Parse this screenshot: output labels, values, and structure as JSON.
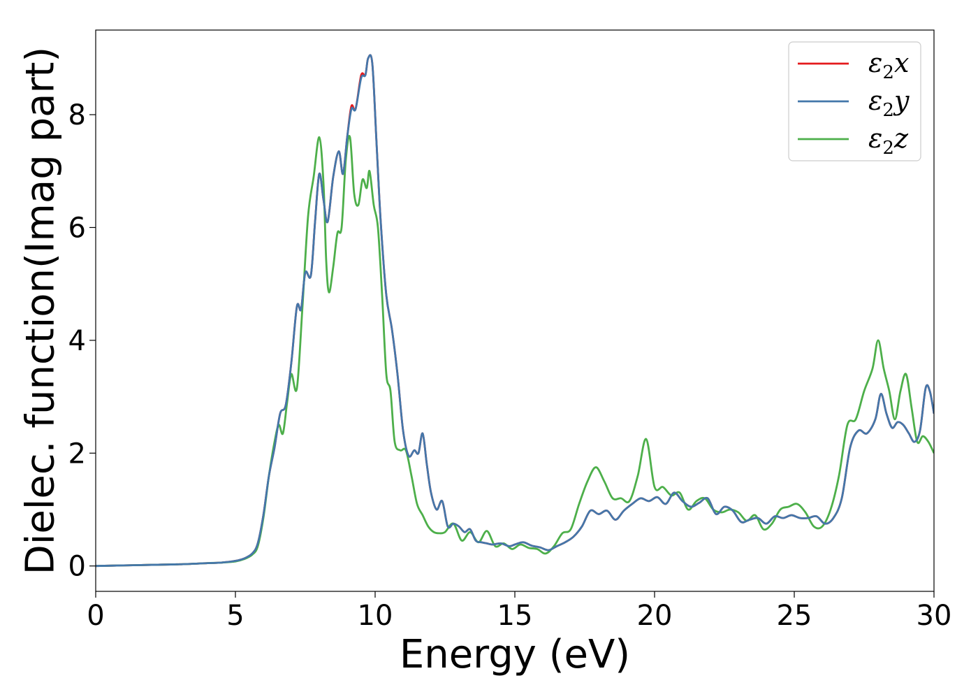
{
  "chart_data": {
    "type": "line",
    "title": "",
    "xlabel": "Energy (eV)",
    "ylabel": "Dielec. function(Imag part)",
    "xlim": [
      0,
      30
    ],
    "ylim": [
      -0.45,
      9.5
    ],
    "xticks": [
      0,
      5,
      10,
      15,
      20,
      25,
      30
    ],
    "yticks": [
      0,
      2,
      4,
      6,
      8
    ],
    "grid": false,
    "legend_position": "top-right",
    "series": [
      {
        "name": "ε2x",
        "legend_base": "ε",
        "legend_sub": "2",
        "legend_tail": "x",
        "color": "#e41a1c",
        "x": [
          0,
          1,
          2,
          3,
          4,
          4.5,
          5,
          5.3,
          5.6,
          5.8,
          6.0,
          6.2,
          6.4,
          6.6,
          6.8,
          7.0,
          7.2,
          7.35,
          7.5,
          7.7,
          7.85,
          8.0,
          8.15,
          8.3,
          8.5,
          8.7,
          8.85,
          9.0,
          9.15,
          9.3,
          9.5,
          9.65,
          9.75,
          9.9,
          10.05,
          10.2,
          10.4,
          10.6,
          10.8,
          11.0,
          11.2,
          11.4,
          11.55,
          11.7,
          11.85,
          12.0,
          12.2,
          12.4,
          12.6,
          12.8,
          13.0,
          13.2,
          13.4,
          13.6,
          13.8,
          14.0,
          14.2,
          14.5,
          14.8,
          15.0,
          15.3,
          15.6,
          15.9,
          16.2,
          16.5,
          16.8,
          17.1,
          17.4,
          17.7,
          18.0,
          18.3,
          18.6,
          18.9,
          19.2,
          19.5,
          19.8,
          20.1,
          20.4,
          20.7,
          21.0,
          21.3,
          21.6,
          21.9,
          22.2,
          22.5,
          22.8,
          23.1,
          23.4,
          23.7,
          24.0,
          24.3,
          24.6,
          24.9,
          25.2,
          25.5,
          25.8,
          26.1,
          26.4,
          26.7,
          27.0,
          27.3,
          27.6,
          27.9,
          28.1,
          28.3,
          28.5,
          28.7,
          28.9,
          29.1,
          29.3,
          29.5,
          29.7,
          29.85,
          30.0
        ],
        "values": [
          0,
          0.01,
          0.02,
          0.03,
          0.05,
          0.06,
          0.09,
          0.13,
          0.22,
          0.4,
          0.9,
          1.6,
          2.1,
          2.7,
          2.85,
          3.6,
          4.6,
          4.55,
          5.2,
          5.15,
          6.1,
          6.95,
          6.5,
          6.1,
          6.9,
          7.35,
          6.95,
          7.6,
          8.15,
          8.1,
          8.7,
          8.7,
          9.0,
          8.9,
          7.5,
          6.1,
          4.8,
          4.2,
          3.4,
          2.4,
          1.95,
          2.05,
          2.0,
          2.35,
          1.8,
          1.3,
          1.0,
          1.15,
          0.7,
          0.75,
          0.7,
          0.6,
          0.65,
          0.45,
          0.42,
          0.4,
          0.38,
          0.4,
          0.35,
          0.38,
          0.42,
          0.36,
          0.33,
          0.28,
          0.35,
          0.42,
          0.52,
          0.7,
          0.98,
          0.92,
          0.98,
          0.82,
          0.98,
          1.1,
          1.2,
          1.15,
          1.22,
          1.1,
          1.3,
          1.15,
          1.05,
          1.12,
          1.2,
          0.92,
          1.05,
          0.98,
          0.78,
          0.82,
          0.85,
          0.75,
          0.88,
          0.85,
          0.9,
          0.85,
          0.85,
          0.88,
          0.75,
          0.85,
          1.2,
          2.1,
          2.4,
          2.35,
          2.6,
          3.05,
          2.7,
          2.45,
          2.55,
          2.5,
          2.35,
          2.2,
          2.4,
          3.15,
          3.1,
          2.7
        ]
      },
      {
        "name": "ε2y",
        "legend_base": "ε",
        "legend_sub": "2",
        "legend_tail": "y",
        "color": "#4477aa",
        "x": [
          0,
          1,
          2,
          3,
          4,
          4.5,
          5,
          5.3,
          5.6,
          5.8,
          6.0,
          6.2,
          6.4,
          6.6,
          6.8,
          7.0,
          7.2,
          7.35,
          7.5,
          7.7,
          7.85,
          8.0,
          8.15,
          8.3,
          8.5,
          8.7,
          8.85,
          9.0,
          9.15,
          9.3,
          9.5,
          9.65,
          9.75,
          9.9,
          10.05,
          10.2,
          10.4,
          10.6,
          10.8,
          11.0,
          11.2,
          11.4,
          11.55,
          11.7,
          11.85,
          12.0,
          12.2,
          12.4,
          12.6,
          12.8,
          13.0,
          13.2,
          13.4,
          13.6,
          13.8,
          14.0,
          14.2,
          14.5,
          14.8,
          15.0,
          15.3,
          15.6,
          15.9,
          16.2,
          16.5,
          16.8,
          17.1,
          17.4,
          17.7,
          18.0,
          18.3,
          18.6,
          18.9,
          19.2,
          19.5,
          19.8,
          20.1,
          20.4,
          20.7,
          21.0,
          21.3,
          21.6,
          21.9,
          22.2,
          22.5,
          22.8,
          23.1,
          23.4,
          23.7,
          24.0,
          24.3,
          24.6,
          24.9,
          25.2,
          25.5,
          25.8,
          26.1,
          26.4,
          26.7,
          27.0,
          27.3,
          27.6,
          27.9,
          28.1,
          28.3,
          28.5,
          28.7,
          28.9,
          29.1,
          29.3,
          29.5,
          29.7,
          29.85,
          30.0
        ],
        "values": [
          0,
          0.01,
          0.02,
          0.03,
          0.05,
          0.06,
          0.09,
          0.13,
          0.22,
          0.4,
          0.9,
          1.6,
          2.1,
          2.7,
          2.85,
          3.6,
          4.6,
          4.55,
          5.2,
          5.15,
          6.1,
          6.95,
          6.5,
          6.1,
          6.9,
          7.35,
          6.95,
          7.6,
          8.1,
          8.1,
          8.65,
          8.7,
          9.0,
          8.9,
          7.5,
          6.1,
          4.8,
          4.2,
          3.4,
          2.4,
          1.95,
          2.05,
          2.0,
          2.35,
          1.8,
          1.3,
          1.0,
          1.15,
          0.7,
          0.75,
          0.7,
          0.6,
          0.65,
          0.45,
          0.42,
          0.4,
          0.38,
          0.4,
          0.35,
          0.38,
          0.42,
          0.36,
          0.33,
          0.28,
          0.35,
          0.42,
          0.52,
          0.7,
          0.98,
          0.92,
          0.98,
          0.82,
          0.98,
          1.1,
          1.2,
          1.15,
          1.22,
          1.1,
          1.3,
          1.15,
          1.05,
          1.12,
          1.2,
          0.92,
          1.05,
          0.98,
          0.78,
          0.82,
          0.85,
          0.75,
          0.88,
          0.85,
          0.9,
          0.85,
          0.85,
          0.88,
          0.75,
          0.85,
          1.2,
          2.1,
          2.4,
          2.35,
          2.6,
          3.05,
          2.7,
          2.45,
          2.55,
          2.5,
          2.35,
          2.2,
          2.4,
          3.15,
          3.1,
          2.7
        ]
      },
      {
        "name": "ε2z",
        "legend_base": "ε",
        "legend_sub": "2",
        "legend_tail": "z",
        "color": "#4daf4a",
        "x": [
          0,
          1,
          2,
          3,
          4,
          4.5,
          5,
          5.3,
          5.6,
          5.8,
          6.0,
          6.2,
          6.4,
          6.55,
          6.7,
          6.85,
          7.0,
          7.2,
          7.4,
          7.6,
          7.8,
          8.0,
          8.15,
          8.25,
          8.35,
          8.5,
          8.65,
          8.8,
          8.95,
          9.1,
          9.25,
          9.4,
          9.55,
          9.7,
          9.8,
          9.95,
          10.1,
          10.25,
          10.4,
          10.55,
          10.7,
          10.9,
          11.1,
          11.3,
          11.5,
          11.7,
          11.9,
          12.1,
          12.3,
          12.5,
          12.8,
          13.1,
          13.4,
          13.7,
          14.0,
          14.3,
          14.6,
          14.9,
          15.2,
          15.5,
          15.8,
          16.1,
          16.4,
          16.7,
          17.0,
          17.3,
          17.6,
          17.9,
          18.2,
          18.5,
          18.8,
          19.1,
          19.4,
          19.7,
          20.0,
          20.3,
          20.6,
          20.9,
          21.2,
          21.5,
          21.8,
          22.1,
          22.4,
          22.7,
          23.0,
          23.3,
          23.6,
          23.9,
          24.2,
          24.5,
          24.8,
          25.1,
          25.4,
          25.7,
          26.0,
          26.3,
          26.6,
          26.9,
          27.2,
          27.5,
          27.8,
          28.0,
          28.2,
          28.4,
          28.6,
          28.8,
          29.0,
          29.2,
          29.4,
          29.6,
          29.8,
          30.0
        ],
        "values": [
          0,
          0.01,
          0.02,
          0.03,
          0.05,
          0.06,
          0.08,
          0.12,
          0.2,
          0.35,
          0.85,
          1.6,
          2.2,
          2.5,
          2.35,
          2.9,
          3.4,
          3.15,
          4.6,
          6.2,
          6.9,
          7.6,
          6.8,
          5.4,
          4.85,
          5.3,
          5.9,
          6.0,
          7.2,
          7.6,
          6.6,
          6.4,
          6.85,
          6.7,
          7.0,
          6.4,
          6.0,
          4.8,
          3.4,
          3.1,
          2.2,
          2.05,
          2.05,
          1.6,
          1.1,
          0.9,
          0.7,
          0.6,
          0.58,
          0.6,
          0.75,
          0.45,
          0.6,
          0.42,
          0.62,
          0.35,
          0.4,
          0.3,
          0.38,
          0.32,
          0.3,
          0.22,
          0.35,
          0.58,
          0.65,
          1.1,
          1.5,
          1.75,
          1.5,
          1.2,
          1.2,
          1.15,
          1.6,
          2.25,
          1.4,
          1.4,
          1.25,
          1.3,
          1.0,
          1.15,
          1.2,
          1.0,
          0.95,
          1.0,
          0.95,
          0.8,
          0.9,
          0.65,
          0.75,
          1.0,
          1.05,
          1.1,
          0.95,
          0.7,
          0.7,
          1.0,
          1.6,
          2.5,
          2.6,
          3.1,
          3.5,
          4.0,
          3.5,
          3.1,
          2.6,
          3.1,
          3.4,
          2.8,
          2.2,
          2.3,
          2.2,
          2.0
        ]
      }
    ]
  }
}
